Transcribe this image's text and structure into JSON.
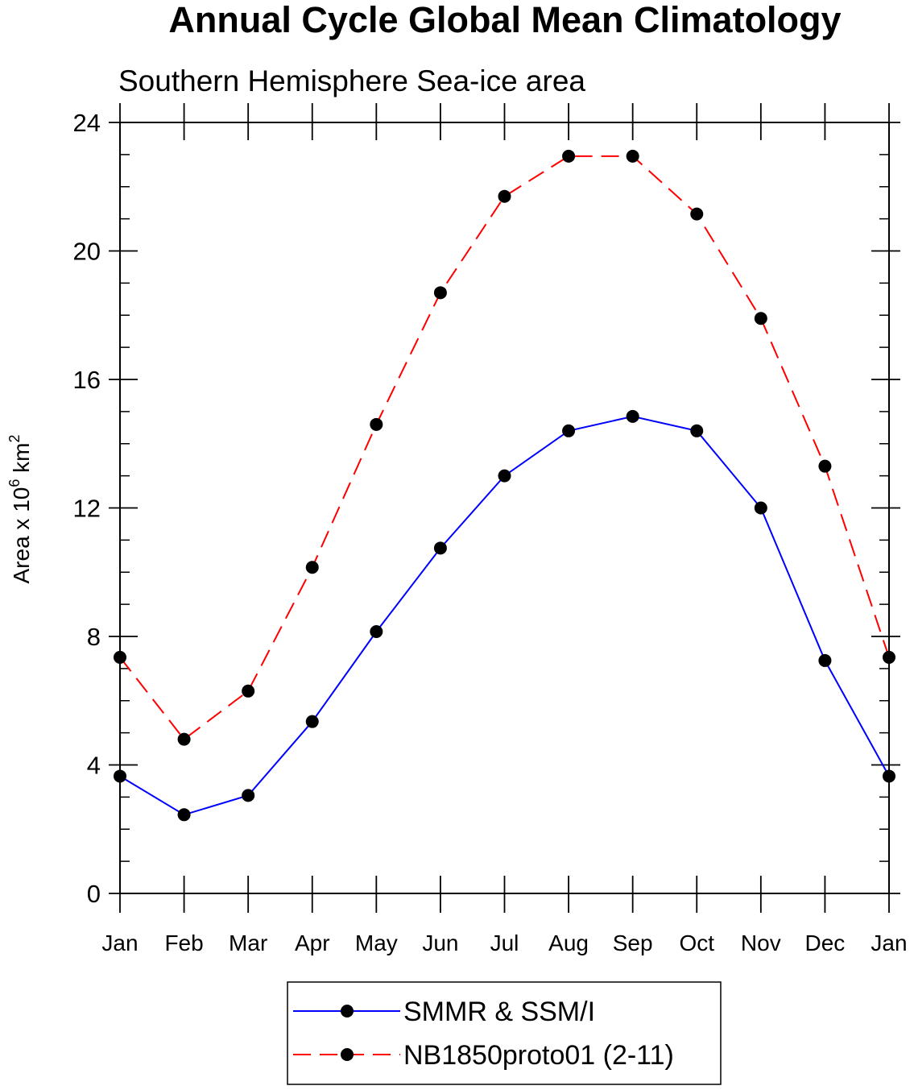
{
  "chart_data": {
    "type": "line",
    "title": "Annual Cycle Global Mean Climatology",
    "subtitle": "Southern Hemisphere Sea-ice area",
    "ylabel": "Area x 10",
    "ylabel_sup": "6",
    "ylabel_unit": " km",
    "ylabel_unit_sup": "2",
    "categories": [
      "Jan",
      "Feb",
      "Mar",
      "Apr",
      "May",
      "Jun",
      "Jul",
      "Aug",
      "Sep",
      "Oct",
      "Nov",
      "Dec",
      "Jan"
    ],
    "ylim": [
      0,
      24
    ],
    "yticks": [
      "0",
      "4",
      "8",
      "12",
      "16",
      "20",
      "24"
    ],
    "grid": false,
    "legend_position": "bottom",
    "series": [
      {
        "name": "SMMR & SSM/I",
        "color": "#0000ff",
        "dash": "solid",
        "values": [
          3.65,
          2.45,
          3.05,
          5.35,
          8.15,
          10.75,
          13.0,
          14.4,
          14.85,
          14.4,
          12.0,
          7.25,
          3.65
        ]
      },
      {
        "name": "NB1850proto01 (2-11)",
        "color": "#ff0000",
        "dash": "dashed",
        "values": [
          7.35,
          4.8,
          6.3,
          10.15,
          14.6,
          18.7,
          21.7,
          22.95,
          22.95,
          21.15,
          17.9,
          13.3,
          7.35
        ]
      }
    ]
  }
}
